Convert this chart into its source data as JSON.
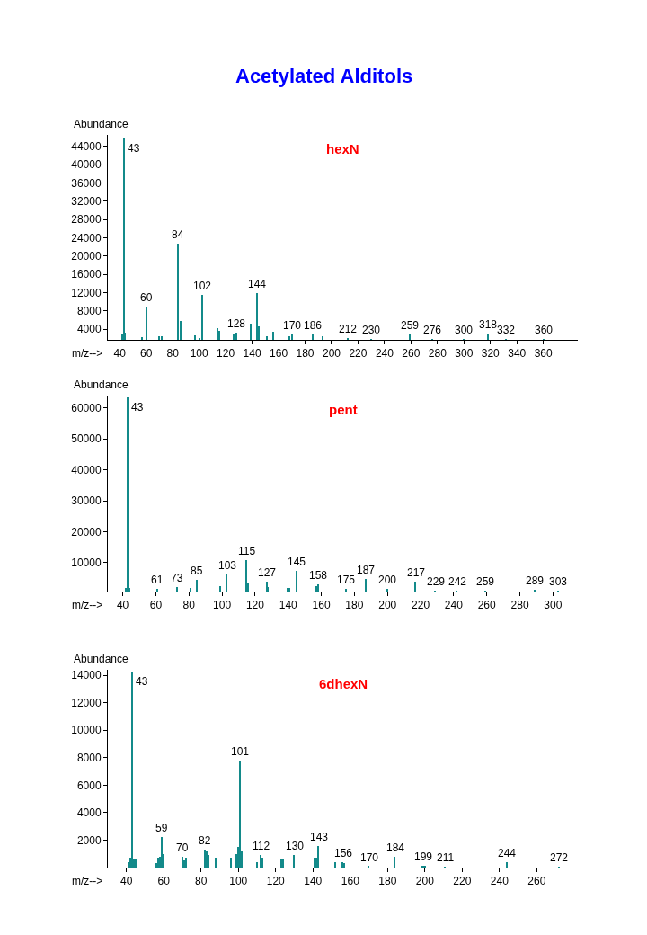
{
  "chart_data": [
    {
      "type": "bar",
      "title": "Acetylated Alditols",
      "subtitle": "hexN",
      "xlabel": "m/z-->",
      "ylabel": "Abundance",
      "color": "#138a8a",
      "x": [
        42,
        43,
        44,
        57,
        60,
        70,
        72,
        84,
        86,
        97,
        100,
        102,
        114,
        115,
        126,
        128,
        139,
        144,
        145,
        151,
        156,
        168,
        170,
        186,
        193,
        212,
        230,
        259,
        276,
        300,
        318,
        332,
        360
      ],
      "values": [
        3100,
        45800,
        3300,
        2200,
        9000,
        2400,
        2500,
        22800,
        5800,
        2600,
        2100,
        11500,
        4200,
        3700,
        2800,
        3300,
        5200,
        11900,
        4600,
        2500,
        3400,
        2400,
        2800,
        2800,
        2500,
        2100,
        1900,
        2800,
        1900,
        1800,
        3000,
        1800,
        1800
      ],
      "annotations": [
        {
          "text": "43",
          "x": 43,
          "y": 45800
        },
        {
          "text": "60",
          "x": 60,
          "y": 9000
        },
        {
          "text": "84",
          "x": 84,
          "y": 22800
        },
        {
          "text": "102",
          "x": 102,
          "y": 11500
        },
        {
          "text": "128",
          "x": 128,
          "y": 3300
        },
        {
          "text": "144",
          "x": 144,
          "y": 11900
        },
        {
          "text": "170",
          "x": 170,
          "y": 2800
        },
        {
          "text": "186",
          "x": 186,
          "y": 2800
        },
        {
          "text": "212",
          "x": 212,
          "y": 2100
        },
        {
          "text": "230",
          "x": 230,
          "y": 1900
        },
        {
          "text": "259",
          "x": 259,
          "y": 2800
        },
        {
          "text": "276",
          "x": 276,
          "y": 1900
        },
        {
          "text": "300",
          "x": 300,
          "y": 1800
        },
        {
          "text": "318",
          "x": 318,
          "y": 3000
        },
        {
          "text": "332",
          "x": 332,
          "y": 1800
        },
        {
          "text": "360",
          "x": 360,
          "y": 1800
        }
      ],
      "xlim": [
        31,
        386
      ],
      "xticks": [
        40,
        60,
        80,
        100,
        120,
        140,
        160,
        180,
        200,
        220,
        240,
        260,
        280,
        300,
        320,
        340,
        360
      ],
      "ylim": [
        1700,
        46500
      ],
      "yticks": [
        4000,
        8000,
        12000,
        16000,
        20000,
        24000,
        28000,
        32000,
        36000,
        40000,
        44000
      ]
    },
    {
      "type": "bar",
      "subtitle": "pent",
      "xlabel": "m/z-->",
      "ylabel": "Abundance",
      "color": "#138a8a",
      "x": [
        42,
        43,
        44,
        61,
        73,
        81,
        85,
        99,
        103,
        115,
        116,
        127,
        128,
        140,
        141,
        145,
        157,
        158,
        175,
        187,
        200,
        217,
        229,
        242,
        259,
        289,
        303
      ],
      "values": [
        1800,
        63500,
        2000,
        1500,
        2100,
        1800,
        4500,
        2500,
        6300,
        10800,
        3600,
        4000,
        2200,
        1900,
        1900,
        7500,
        2500,
        3000,
        1500,
        4800,
        1600,
        4000,
        1000,
        1000,
        1000,
        1400,
        1000
      ],
      "annotations": [
        {
          "text": "43",
          "x": 43,
          "y": 63500
        },
        {
          "text": "61",
          "x": 61,
          "y": 1500
        },
        {
          "text": "73",
          "x": 73,
          "y": 2100
        },
        {
          "text": "85",
          "x": 85,
          "y": 4500
        },
        {
          "text": "103",
          "x": 103,
          "y": 6300
        },
        {
          "text": "115",
          "x": 115,
          "y": 10800
        },
        {
          "text": "127",
          "x": 127,
          "y": 4000
        },
        {
          "text": "145",
          "x": 145,
          "y": 7500
        },
        {
          "text": "158",
          "x": 158,
          "y": 3000
        },
        {
          "text": "175",
          "x": 175,
          "y": 1500
        },
        {
          "text": "187",
          "x": 187,
          "y": 4800
        },
        {
          "text": "200",
          "x": 200,
          "y": 1600
        },
        {
          "text": "217",
          "x": 217,
          "y": 4000
        },
        {
          "text": "229",
          "x": 229,
          "y": 1000
        },
        {
          "text": "242",
          "x": 242,
          "y": 1000
        },
        {
          "text": "259",
          "x": 259,
          "y": 1000
        },
        {
          "text": "289",
          "x": 289,
          "y": 1400
        },
        {
          "text": "303",
          "x": 303,
          "y": 1000
        }
      ],
      "xlim": [
        31,
        315
      ],
      "xticks": [
        40,
        60,
        80,
        100,
        120,
        140,
        160,
        180,
        200,
        220,
        240,
        260,
        280,
        300
      ],
      "ylim": [
        700,
        64000
      ],
      "yticks": [
        10000,
        20000,
        30000,
        40000,
        50000,
        60000
      ]
    },
    {
      "type": "bar",
      "subtitle": "6dhexN",
      "xlabel": "m/z-->",
      "ylabel": "Abundance",
      "color": "#138a8a",
      "x": [
        41,
        42,
        43,
        44,
        45,
        56,
        57,
        58,
        59,
        60,
        70,
        71,
        72,
        82,
        83,
        84,
        88,
        96,
        99,
        100,
        101,
        102,
        110,
        112,
        113,
        123,
        124,
        130,
        141,
        142,
        143,
        152,
        156,
        157,
        170,
        184,
        199,
        200,
        211,
        244,
        272
      ],
      "values": [
        400,
        700,
        14300,
        600,
        600,
        300,
        700,
        800,
        2200,
        1000,
        800,
        500,
        700,
        1300,
        1200,
        900,
        700,
        700,
        1000,
        1500,
        7800,
        1200,
        400,
        900,
        700,
        600,
        600,
        900,
        700,
        700,
        1600,
        400,
        400,
        300,
        80,
        800,
        150,
        150,
        60,
        400,
        40
      ],
      "annotations": [
        {
          "text": "43",
          "x": 43,
          "y": 14300
        },
        {
          "text": "59",
          "x": 59,
          "y": 2200
        },
        {
          "text": "70",
          "x": 70,
          "y": 800
        },
        {
          "text": "82",
          "x": 82,
          "y": 1300
        },
        {
          "text": "101",
          "x": 101,
          "y": 7800
        },
        {
          "text": "112",
          "x": 112,
          "y": 900
        },
        {
          "text": "130",
          "x": 130,
          "y": 900
        },
        {
          "text": "143",
          "x": 143,
          "y": 1600
        },
        {
          "text": "156",
          "x": 156,
          "y": 400
        },
        {
          "text": "170",
          "x": 170,
          "y": 80
        },
        {
          "text": "184",
          "x": 184,
          "y": 800
        },
        {
          "text": "199",
          "x": 199,
          "y": 150
        },
        {
          "text": "211",
          "x": 211,
          "y": 60
        },
        {
          "text": "244",
          "x": 244,
          "y": 400
        },
        {
          "text": "272",
          "x": 272,
          "y": 40
        }
      ],
      "xlim": [
        30,
        282
      ],
      "xticks": [
        40,
        60,
        80,
        100,
        120,
        140,
        160,
        180,
        200,
        220,
        240,
        260
      ],
      "ylim": [
        0,
        14400
      ],
      "yticks": [
        2000,
        4000,
        6000,
        8000,
        10000,
        12000,
        14000
      ]
    }
  ]
}
